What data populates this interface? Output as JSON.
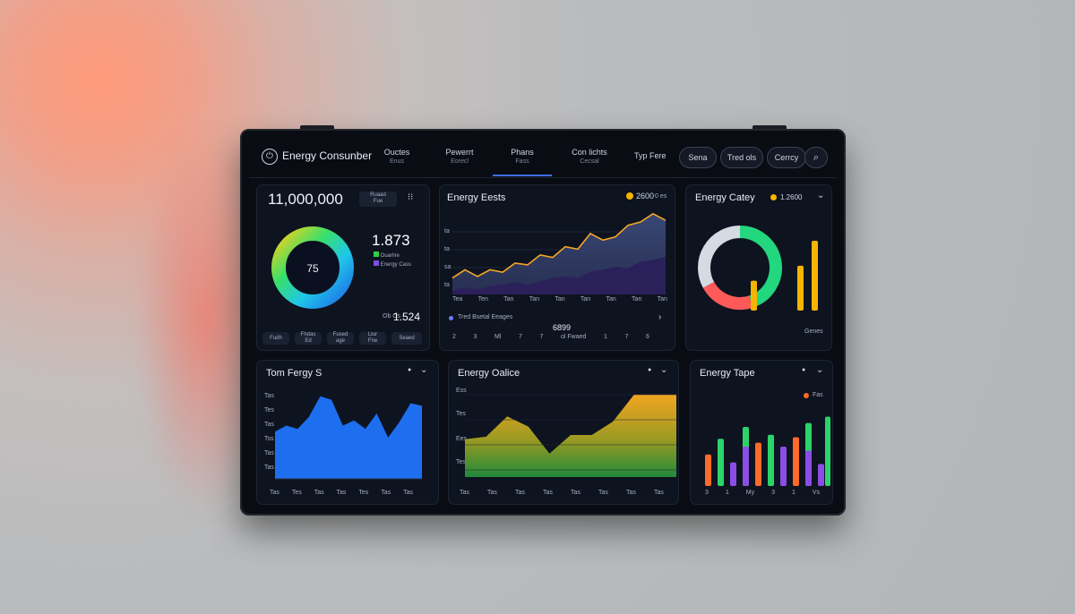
{
  "app": {
    "logo_icon": "power-icon",
    "title": "Energy Consunber"
  },
  "nav": [
    {
      "label": "Ouctes",
      "sub": "Enus"
    },
    {
      "label": "Pewerrt",
      "sub": "Eorecl"
    },
    {
      "label": "Phans",
      "sub": "Fass"
    },
    {
      "label": "Con lichts",
      "sub": "Cecsal"
    }
  ],
  "toolbar": {
    "type_label": "Typ Fere",
    "pills": [
      "Sena",
      "Tred ols",
      "Cerrcy"
    ],
    "search_icon": "search-icon"
  },
  "card_consumption": {
    "total": "11,000,000",
    "badge_line1": "Ruaad",
    "badge_line2": "Fue",
    "menu_icon": "grid-icon",
    "donut_center": "75",
    "big_value": "1.873",
    "legend": [
      {
        "label": "Ouarlire",
        "color": "#2fcf4a"
      },
      {
        "label": "Energy Cass",
        "color": "#7b4fe0"
      }
    ],
    "small_label": "Ob Cs",
    "small_value": "1.524",
    "chips": [
      "Fudh",
      "Fhdas\nEd",
      "Fused\nage",
      "Ltur\nFne",
      "Seaed"
    ]
  },
  "card_costs": {
    "title": "Energy Eests",
    "coin_icon": "coin-icon",
    "value": "2600",
    "unit": "0 es",
    "y_ticks": [
      "ta",
      "ta",
      "sa",
      "ta"
    ],
    "x_ticks": [
      "Tea",
      "Ten",
      "Tan",
      "Tan",
      "Tan",
      "Tan",
      "Tan",
      "Tan",
      "Tan"
    ],
    "footer_label": "Tred Bsetal Eeages",
    "footer_value": "6899",
    "footer_sub": "ol Fwaed",
    "x_days": [
      "2",
      "3",
      "Ml",
      "7",
      "7",
      "1",
      "7",
      "6",
      "3"
    ]
  },
  "card_category": {
    "title": "Energy Catey",
    "value": "1.2600",
    "footer": "Genes"
  },
  "card_energy_s": {
    "title": "Tom Fergy S",
    "y_ticks": [
      "Tas",
      "Tes",
      "Tas",
      "Tss",
      "Tas",
      "Tas"
    ],
    "x_ticks": [
      "Tas",
      "Tes",
      "Tas",
      "Tas",
      "Tes",
      "Tas",
      "Tas"
    ]
  },
  "card_office": {
    "title": "Energy Oalice",
    "y_ticks": [
      "Ess",
      "Tes",
      "Ees",
      "Tes"
    ],
    "x_ticks": [
      "Tas",
      "Tas",
      "Tas",
      "Tas",
      "Tas",
      "Tas",
      "Tas",
      "Tas"
    ]
  },
  "card_type": {
    "title": "Energy Tape",
    "legend": "Fas",
    "legend_color": "#ff6a2a",
    "x_ticks": [
      "3",
      "1",
      "My",
      "3",
      "1",
      "Vs"
    ]
  },
  "chart_data": [
    {
      "type": "area",
      "title": "Energy Eests",
      "series": [
        {
          "values": [
            20,
            30,
            22,
            30,
            27,
            38,
            36,
            48,
            45,
            58,
            55,
            74,
            66,
            70,
            84,
            88,
            98,
            90
          ]
        },
        {
          "values": [
            5,
            8,
            6,
            10,
            12,
            15,
            12,
            16,
            20,
            22,
            20,
            28,
            30,
            34,
            32,
            40,
            42,
            46
          ]
        }
      ]
    },
    {
      "type": "pie",
      "title": "Energy Catey",
      "slices": [
        {
          "value": 45,
          "color": "#22d77e"
        },
        {
          "value": 22,
          "color": "#ff5a5a"
        },
        {
          "value": 33,
          "color": "#d5dbe3"
        }
      ]
    },
    {
      "type": "bar",
      "title": "Energy Catey",
      "values": [
        30,
        45,
        70
      ],
      "color": "#f5b400"
    },
    {
      "type": "area",
      "title": "Tom Fergy S",
      "values": [
        55,
        62,
        58,
        72,
        96,
        92,
        62,
        68,
        58,
        76,
        48,
        66,
        88,
        85
      ]
    },
    {
      "type": "area",
      "title": "Energy Oalice",
      "values": [
        45,
        48,
        72,
        60,
        28,
        50,
        50,
        66,
        98,
        98,
        98
      ]
    },
    {
      "type": "bar",
      "title": "Energy Tape",
      "series": [
        {
          "color": "#ff6a2a",
          "values": [
            40,
            55,
            62,
            40,
            58
          ]
        },
        {
          "color": "#2bd46a",
          "values": [
            60,
            75,
            65,
            80,
            60,
            88
          ]
        },
        {
          "color": "#8a4ee6",
          "values": [
            30,
            50,
            28,
            45,
            40
          ]
        }
      ]
    }
  ]
}
